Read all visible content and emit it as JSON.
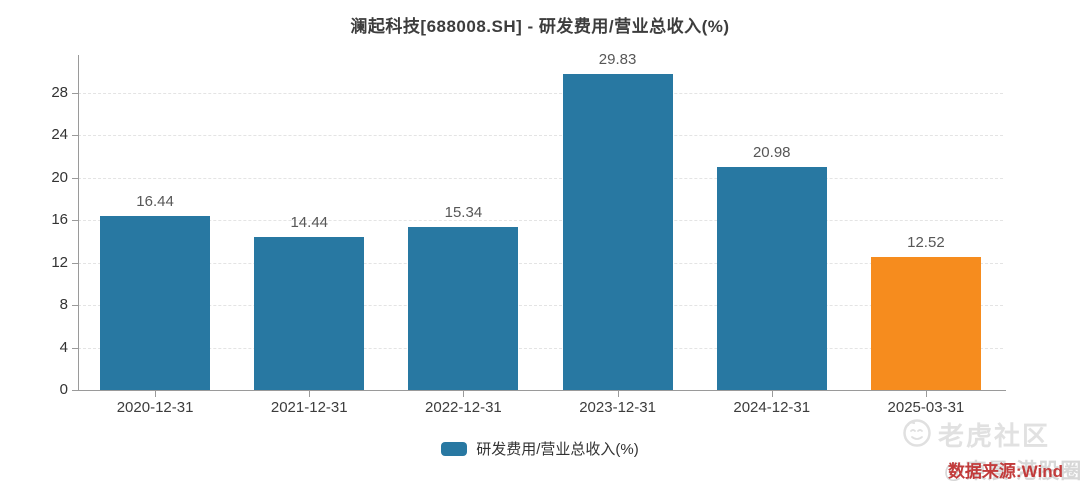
{
  "title": "澜起科技[688008.SH] - 研发费用/营业总收入(%)",
  "chart_data": {
    "type": "bar",
    "title": "澜起科技[688008.SH] - 研发费用/营业总收入(%)",
    "categories": [
      "2020-12-31",
      "2021-12-31",
      "2022-12-31",
      "2023-12-31",
      "2024-12-31",
      "2025-03-31"
    ],
    "series": [
      {
        "name": "研发费用/营业总收入(%)",
        "values": [
          16.44,
          14.44,
          15.34,
          29.83,
          20.98,
          12.52
        ],
        "value_labels": [
          "16.44",
          "14.44",
          "15.34",
          "29.83",
          "20.98",
          "12.52"
        ]
      }
    ],
    "bar_colors": [
      "#2878a2",
      "#2878a2",
      "#2878a2",
      "#2878a2",
      "#2878a2",
      "#f68c1e"
    ],
    "xlabel": "",
    "ylabel": "",
    "ylim": [
      0,
      28
    ],
    "yticks": [
      0,
      4,
      8,
      12,
      16,
      20,
      24,
      28
    ],
    "grid": true,
    "grid_style": "dashed",
    "legend_label": "研发费用/营业总收入(%)",
    "legend_position": "bottom-center",
    "legend_swatch_color": "#2878a2"
  },
  "footer": {
    "source_note": "数据来源:Wind",
    "source_note_color": "#c23b3b"
  },
  "watermarks": {
    "community": "老虎社区",
    "community_icon": "tiger-logo-icon",
    "user": "@東晨 港股圈"
  },
  "colors": {
    "bar_teal": "#2878a2",
    "bar_orange": "#f68c1e",
    "axis_line": "#9a9a9a",
    "gridline": "#e4e4e4",
    "title_text": "#3d3d3d",
    "tick_text": "#333333",
    "value_label_text": "#575757",
    "watermark_grey": "#dedede",
    "background": "#ffffff"
  }
}
